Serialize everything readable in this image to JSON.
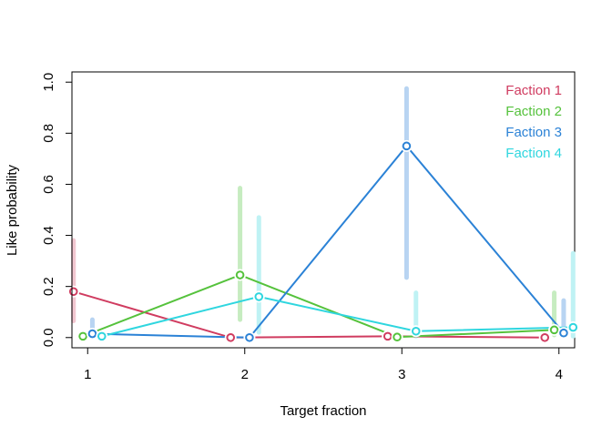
{
  "chart_data": {
    "type": "line",
    "title": "",
    "xlabel": "Target fraction",
    "ylabel": "Like probability",
    "x": [
      1,
      2,
      3,
      4
    ],
    "xticks": [
      "1",
      "2",
      "3",
      "4"
    ],
    "yticks": [
      "0.0",
      "0.2",
      "0.4",
      "0.6",
      "0.8",
      "1.0"
    ],
    "xlim": [
      0.9,
      4.1
    ],
    "ylim": [
      -0.04,
      1.04
    ],
    "grid": false,
    "legend_position": "top-right",
    "series": [
      {
        "name": "Faction 1",
        "color": "#d03c60",
        "interval_color": "#f2c6d0",
        "values": [
          0.18,
          0.0,
          0.005,
          0.0
        ],
        "lower": [
          0.065,
          null,
          null,
          null
        ],
        "upper": [
          0.38,
          null,
          null,
          null
        ]
      },
      {
        "name": "Faction 2",
        "color": "#55c23c",
        "interval_color": "#c6ecc0",
        "values": [
          0.005,
          0.245,
          0.002,
          0.03
        ],
        "lower": [
          null,
          0.07,
          null,
          0.01
        ],
        "upper": [
          null,
          0.585,
          null,
          0.175
        ]
      },
      {
        "name": "Faction 3",
        "color": "#2b82d6",
        "interval_color": "#b8d4f2",
        "values": [
          0.015,
          0.0,
          0.75,
          0.018
        ],
        "lower": [
          0.005,
          null,
          0.235,
          0.005
        ],
        "upper": [
          0.07,
          null,
          0.975,
          0.145
        ]
      },
      {
        "name": "Faction 4",
        "color": "#2fd6df",
        "interval_color": "#bff2f4",
        "values": [
          0.005,
          0.16,
          0.025,
          0.04
        ],
        "lower": [
          null,
          0.02,
          0.005,
          0.005
        ],
        "upper": [
          null,
          0.47,
          0.175,
          0.33
        ]
      }
    ]
  }
}
